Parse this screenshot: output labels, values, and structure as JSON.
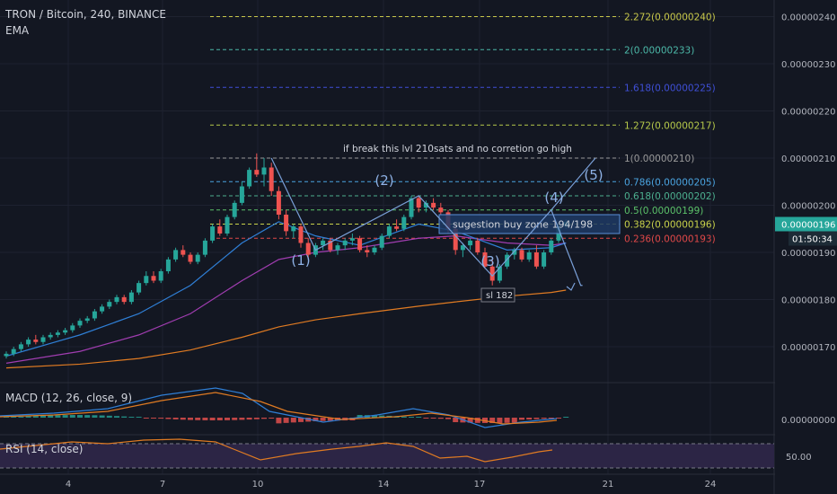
{
  "header": {
    "symbol": "TRON / Bitcoin, 240, BINANCE",
    "indicator": "EMA"
  },
  "macd_label": "MACD (12, 26, close, 9)",
  "rsi_label": "RSI (14, close)",
  "price_axis": {
    "ticks": [
      "0.00000240",
      "0.00000230",
      "0.00000220",
      "0.00000210",
      "0.00000200",
      "0.00000190",
      "0.00000180",
      "0.00000170"
    ],
    "current_price": "0.00000196",
    "countdown": "01:50:34"
  },
  "macd_axis": {
    "ticks": [
      "0.00000000"
    ]
  },
  "rsi_axis": {
    "ticks": [
      "50.00"
    ]
  },
  "x_axis": {
    "ticks": [
      "4",
      "7",
      "10",
      "14",
      "17",
      "21",
      "24"
    ]
  },
  "fib_levels": [
    {
      "label": "2.272(0.00000240)",
      "price": 240,
      "color": "#c8c84a"
    },
    {
      "label": "2(0.00000233)",
      "price": 233,
      "color": "#4cb8a8"
    },
    {
      "label": "1.618(0.00000225)",
      "price": 225,
      "color": "#3f4fd6"
    },
    {
      "label": "1.272(0.00000217)",
      "price": 217,
      "color": "#b6c94a"
    },
    {
      "label": "1(0.00000210)",
      "price": 210,
      "color": "#9a9a9a"
    },
    {
      "label": "0.786(0.00000205)",
      "price": 205,
      "color": "#4aa3df"
    },
    {
      "label": "0.618(0.00000202)",
      "price": 202,
      "color": "#4caf8f"
    },
    {
      "label": "0.5(0.00000199)",
      "price": 199,
      "color": "#5cc26a"
    },
    {
      "label": "0.382(0.00000196)",
      "price": 196,
      "color": "#c8d14a"
    },
    {
      "label": "0.236(0.00000193)",
      "price": 193,
      "color": "#e04848"
    }
  ],
  "annotations": {
    "break_note": "if break this lvl 210sats and no corretion go high",
    "buy_zone": "sugestion buy zone 194/198",
    "stop_loss": "sl 182",
    "waves": [
      "(1)",
      "(2)",
      "(3)",
      "(4)",
      "(5)"
    ]
  },
  "colors": {
    "up": "#26a69a",
    "down": "#ef5350",
    "ema_fast": "#2f7fd6",
    "ema_mid": "#a03db0",
    "ema_slow": "#e07b22",
    "macd_line": "#2f7fd6",
    "signal_line": "#e07b22",
    "rsi_line": "#e07b22",
    "rsi_band": "#2c2545",
    "wave_path": "#7aa0d8",
    "buy_zone": "#1e3a64",
    "price_tag": "#26a69a"
  },
  "chart_data": {
    "type": "candlestick",
    "title": "TRON / Bitcoin, 240, BINANCE",
    "ylim": [
      1.64e-06,
      2.45e-06
    ],
    "candles": [
      [
        168,
        169,
        167.5,
        168.5
      ],
      [
        168.5,
        170,
        168,
        169.5
      ],
      [
        169.5,
        171,
        169,
        170.5
      ],
      [
        170.5,
        172,
        170,
        171.5
      ],
      [
        171.5,
        172.5,
        170.5,
        171
      ],
      [
        171,
        172.5,
        170.5,
        172
      ],
      [
        172,
        173,
        171.5,
        172.5
      ],
      [
        172.5,
        173.5,
        172,
        173
      ],
      [
        173,
        174,
        172.5,
        173.5
      ],
      [
        173.5,
        175,
        173,
        174.5
      ],
      [
        174.5,
        176,
        174,
        175.5
      ],
      [
        175.5,
        176.5,
        175,
        176
      ],
      [
        176,
        178,
        175.5,
        177.5
      ],
      [
        177.5,
        179,
        177,
        178.5
      ],
      [
        178.5,
        180,
        178,
        179.5
      ],
      [
        179.5,
        181,
        179,
        180.5
      ],
      [
        180.5,
        181,
        179,
        179.5
      ],
      [
        179.5,
        182,
        179,
        181.5
      ],
      [
        181.5,
        184,
        181,
        183.5
      ],
      [
        183.5,
        186,
        183,
        185
      ],
      [
        185,
        186,
        183.5,
        184
      ],
      [
        184,
        186.5,
        183.5,
        186
      ],
      [
        186,
        189,
        185.5,
        188.5
      ],
      [
        188.5,
        191,
        188,
        190.5
      ],
      [
        190.5,
        191.5,
        189,
        189.5
      ],
      [
        189.5,
        190,
        187.5,
        188
      ],
      [
        188,
        190,
        187.5,
        189.5
      ],
      [
        189.5,
        193,
        189,
        192.5
      ],
      [
        192.5,
        196,
        192,
        195.5
      ],
      [
        195.5,
        197,
        193.5,
        194
      ],
      [
        194,
        198,
        193.5,
        197.5
      ],
      [
        197.5,
        201,
        197,
        200.5
      ],
      [
        200.5,
        205,
        200,
        204
      ],
      [
        204,
        208,
        203.5,
        207.5
      ],
      [
        207.5,
        211,
        206,
        206.5
      ],
      [
        206.5,
        210,
        204,
        208
      ],
      [
        208,
        209,
        202,
        203
      ],
      [
        203,
        204,
        197,
        198
      ],
      [
        198,
        199,
        193.5,
        194.5
      ],
      [
        194.5,
        196,
        193,
        195.5
      ],
      [
        195.5,
        196,
        191,
        192
      ],
      [
        192,
        193,
        188.5,
        189.5
      ],
      [
        189.5,
        192,
        189,
        191.5
      ],
      [
        191.5,
        193,
        190.5,
        192.5
      ],
      [
        192.5,
        193,
        190,
        190.5
      ],
      [
        190.5,
        192,
        189.5,
        191.5
      ],
      [
        191.5,
        193,
        190.5,
        192.5
      ],
      [
        192.5,
        194,
        191.5,
        193
      ],
      [
        193,
        193.5,
        190,
        190.5
      ],
      [
        190.5,
        191.5,
        189,
        190
      ],
      [
        190,
        191.5,
        189.5,
        191
      ],
      [
        191,
        194,
        190.5,
        193.5
      ],
      [
        193.5,
        196,
        193,
        195.5
      ],
      [
        195.5,
        197,
        194.5,
        195
      ],
      [
        195,
        198,
        194.5,
        197.5
      ],
      [
        197.5,
        202,
        197,
        201.5
      ],
      [
        201.5,
        202,
        198.5,
        199.5
      ],
      [
        199.5,
        201,
        198.5,
        200.5
      ],
      [
        200.5,
        201.5,
        199,
        199.5
      ],
      [
        199.5,
        200.5,
        198,
        198.5
      ],
      [
        198.5,
        199,
        194,
        195
      ],
      [
        195,
        196,
        189.5,
        190.5
      ],
      [
        190.5,
        192,
        189,
        191.5
      ],
      [
        191.5,
        193,
        190.5,
        192.5
      ],
      [
        192.5,
        193,
        189.5,
        190
      ],
      [
        190,
        191,
        186.5,
        187
      ],
      [
        187,
        188.5,
        183,
        184
      ],
      [
        184,
        187.5,
        183.5,
        187
      ],
      [
        187,
        190,
        186.5,
        189.5
      ],
      [
        189.5,
        191,
        188.5,
        190.5
      ],
      [
        190.5,
        191,
        188,
        188.5
      ],
      [
        188.5,
        190.5,
        188,
        190
      ],
      [
        190,
        191.5,
        186.5,
        187
      ],
      [
        187,
        190.5,
        186.5,
        190
      ],
      [
        190,
        193,
        189.5,
        192.5
      ],
      [
        192.5,
        196,
        192,
        195.5
      ],
      [
        195.5,
        197,
        195,
        196.5
      ]
    ],
    "ema_fast": [
      [
        0,
        168
      ],
      [
        10,
        172.5
      ],
      [
        18,
        177
      ],
      [
        25,
        183
      ],
      [
        32,
        192
      ],
      [
        37,
        196.5
      ],
      [
        42,
        193.5
      ],
      [
        48,
        191.5
      ],
      [
        56,
        196
      ],
      [
        61,
        194.5
      ],
      [
        68,
        190.5
      ],
      [
        74,
        191
      ],
      [
        76,
        192
      ]
    ],
    "ema_mid": [
      [
        0,
        166.5
      ],
      [
        10,
        169
      ],
      [
        18,
        172.5
      ],
      [
        25,
        177
      ],
      [
        32,
        184
      ],
      [
        37,
        188.5
      ],
      [
        42,
        190
      ],
      [
        48,
        191
      ],
      [
        56,
        193
      ],
      [
        61,
        193.5
      ],
      [
        68,
        192
      ],
      [
        74,
        191.5
      ],
      [
        76,
        192
      ]
    ],
    "ema_slow": [
      [
        0,
        165.5
      ],
      [
        10,
        166.3
      ],
      [
        18,
        167.5
      ],
      [
        25,
        169.3
      ],
      [
        32,
        172
      ],
      [
        37,
        174.2
      ],
      [
        42,
        175.7
      ],
      [
        48,
        177
      ],
      [
        56,
        178.6
      ],
      [
        61,
        179.5
      ],
      [
        68,
        180.7
      ],
      [
        74,
        181.5
      ],
      [
        76,
        182
      ]
    ],
    "wave_path": [
      [
        36,
        210
      ],
      [
        42,
        190.5
      ],
      [
        56,
        202
      ],
      [
        66,
        185
      ],
      [
        74,
        199
      ],
      [
        80,
        210
      ]
    ],
    "projection_path": [
      [
        74,
        199
      ],
      [
        78,
        183
      ]
    ]
  }
}
